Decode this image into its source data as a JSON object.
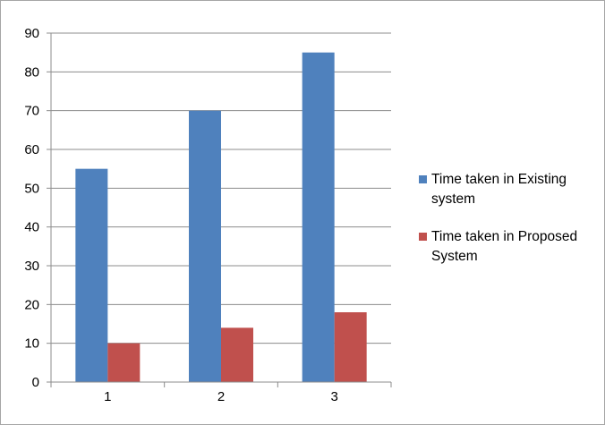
{
  "chart_data": {
    "type": "bar",
    "categories": [
      "1",
      "2",
      "3"
    ],
    "series": [
      {
        "name": "Time taken in Existing system",
        "values": [
          55,
          70,
          85
        ],
        "color": "#4f81bd"
      },
      {
        "name": "Time taken in Proposed System",
        "values": [
          10,
          14,
          18
        ],
        "color": "#c0504d"
      }
    ],
    "ylim": [
      0,
      90
    ],
    "yticks": [
      "0",
      "10",
      "20",
      "30",
      "40",
      "50",
      "60",
      "70",
      "80",
      "90"
    ],
    "grid": true,
    "legend_position": "right"
  }
}
